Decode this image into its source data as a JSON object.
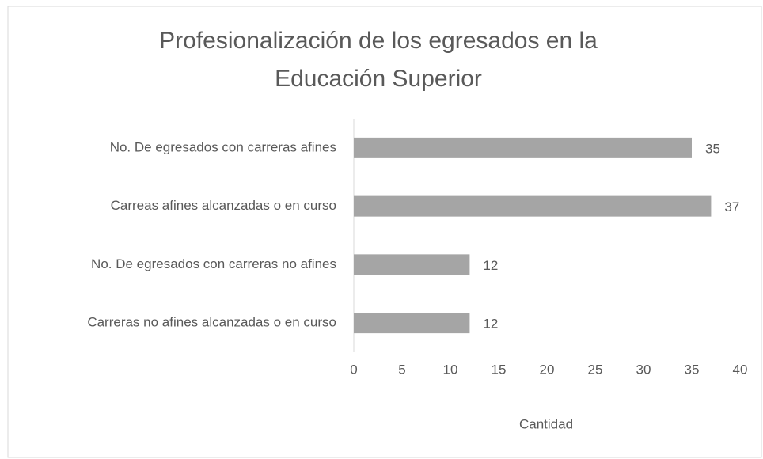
{
  "chart_data": {
    "type": "barh",
    "title": "Profesionalización de los egresados en la Educación Superior",
    "categories": [
      "No. De egresados con carreras afines",
      "Carreas afines alcanzadas o en curso",
      "No. De egresados con carreras no afines",
      "Carreras no afines alcanzadas o en curso"
    ],
    "values": [
      35,
      37,
      12,
      12
    ],
    "color": "#a5a5a5",
    "xlabel": "Cantidad",
    "xlim": [
      0,
      40
    ],
    "xticks": [
      0,
      5,
      10,
      15,
      20,
      25,
      30,
      35,
      40
    ],
    "grid": false
  }
}
